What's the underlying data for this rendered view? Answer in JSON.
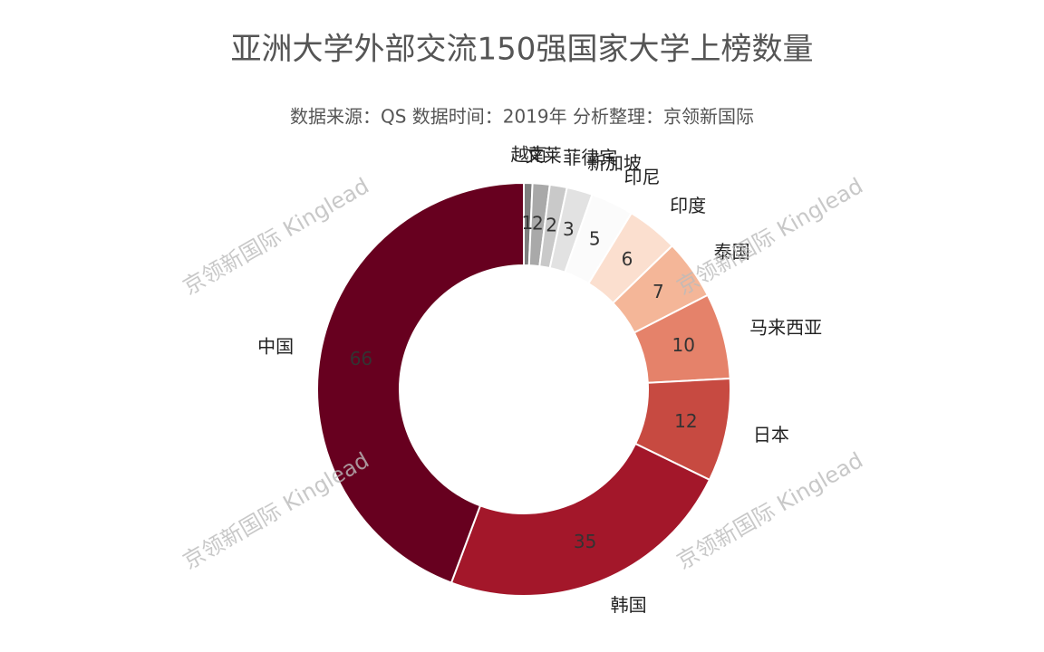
{
  "chart_data": {
    "type": "pie",
    "title": "亚洲大学外部交流150强国家大学上榜数量",
    "subtitle": "数据来源：QS 数据时间：2019年 分析整理：京领新国际",
    "watermark": "京领新国际 Kinglead",
    "categories": [
      "越南",
      "文莱",
      "菲律宾",
      "新加坡",
      "印尼",
      "印度",
      "泰国",
      "马来西亚",
      "日本",
      "韩国",
      "中国"
    ],
    "values": [
      1,
      2,
      2,
      3,
      5,
      6,
      7,
      10,
      12,
      35,
      66
    ],
    "colors": [
      "#7f7f7f",
      "#a9a9a9",
      "#c9c9c9",
      "#e2e2e2",
      "#fbfbfb",
      "#fbdfcf",
      "#f4b698",
      "#e5826a",
      "#c74a41",
      "#a3172a",
      "#67001f"
    ]
  }
}
